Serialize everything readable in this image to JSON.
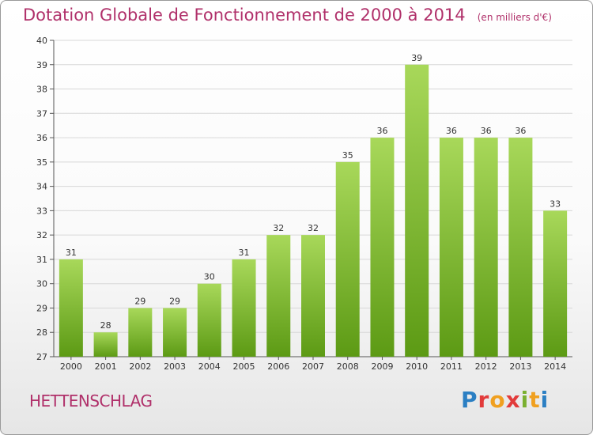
{
  "header": {
    "title": "Dotation Globale de Fonctionnement de 2000 à 2014",
    "subtitle": "(en milliers d'€)"
  },
  "footer": {
    "commune": "HETTENSCHLAG",
    "logo": "Proxiti"
  },
  "colors": {
    "title": "#b0306a",
    "bar_top": "#a8d85a",
    "bar_bottom": "#5c9a14",
    "grid": "#d8d8d8"
  },
  "chart_data": {
    "type": "bar",
    "title": "Dotation Globale de Fonctionnement de 2000 à 2014",
    "subtitle": "(en milliers d'€)",
    "xlabel": "",
    "ylabel": "",
    "categories": [
      "2000",
      "2001",
      "2002",
      "2003",
      "2004",
      "2005",
      "2006",
      "2007",
      "2008",
      "2009",
      "2010",
      "2011",
      "2012",
      "2013",
      "2014"
    ],
    "values": [
      31,
      28,
      29,
      29,
      30,
      31,
      32,
      32,
      35,
      36,
      39,
      36,
      36,
      36,
      33
    ],
    "ylim": [
      27,
      40
    ],
    "yticks": [
      27,
      28,
      29,
      30,
      31,
      32,
      33,
      34,
      35,
      36,
      37,
      38,
      39,
      40
    ],
    "grid": true,
    "data_labels": true
  }
}
